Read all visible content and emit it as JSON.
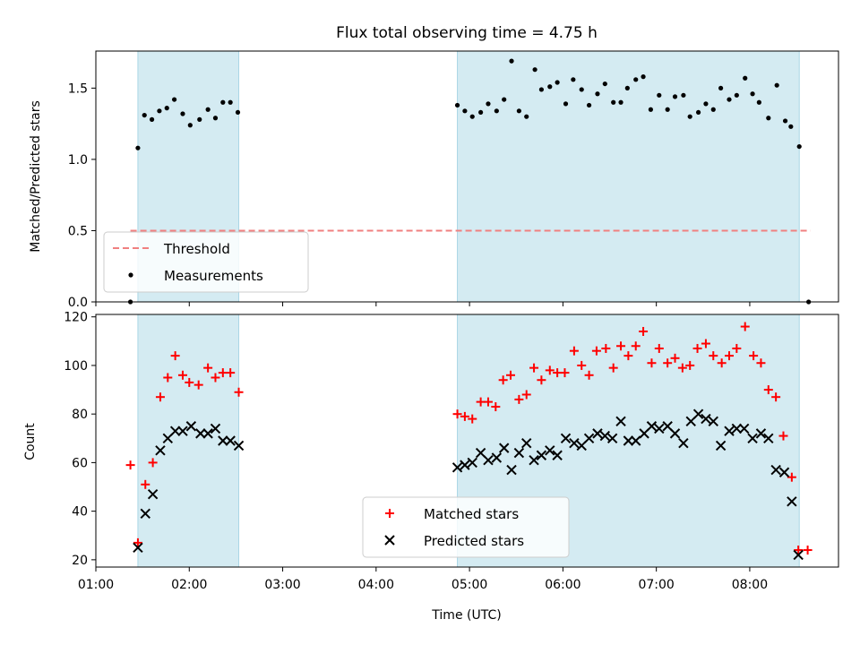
{
  "title": "Flux total observing time = 4.75 h",
  "colors": {
    "band": "#d4ebf2",
    "band_edge": "#a9d6e5",
    "threshold": "#f08080",
    "matched": "#ff0000",
    "predicted": "#000000"
  },
  "chart_data": [
    {
      "type": "scatter",
      "panel": "top",
      "xlabel": "",
      "ylabel": "Matched/Predicted stars",
      "xlim": [
        1.0,
        8.95
      ],
      "ylim": [
        0,
        1.76
      ],
      "yticks": [
        "0.0",
        "0.5",
        "1.0",
        "1.5"
      ],
      "grid": false,
      "legend_position": "lower-left",
      "threshold": {
        "name": "Threshold",
        "y": 0.5,
        "x_start": 1.37,
        "x_end": 8.65
      },
      "shaded_intervals": [
        [
          1.45,
          2.53
        ],
        [
          4.87,
          8.53
        ]
      ],
      "series": [
        {
          "name": "Measurements",
          "points": [
            [
              1.37,
              0.0
            ],
            [
              1.45,
              1.08
            ],
            [
              1.52,
              1.31
            ],
            [
              1.6,
              1.28
            ],
            [
              1.68,
              1.34
            ],
            [
              1.76,
              1.36
            ],
            [
              1.84,
              1.42
            ],
            [
              1.93,
              1.32
            ],
            [
              2.01,
              1.24
            ],
            [
              2.11,
              1.28
            ],
            [
              2.2,
              1.35
            ],
            [
              2.28,
              1.29
            ],
            [
              2.36,
              1.4
            ],
            [
              2.44,
              1.4
            ],
            [
              2.52,
              1.33
            ],
            [
              4.87,
              1.38
            ],
            [
              4.95,
              1.34
            ],
            [
              5.03,
              1.3
            ],
            [
              5.12,
              1.33
            ],
            [
              5.2,
              1.39
            ],
            [
              5.29,
              1.34
            ],
            [
              5.37,
              1.42
            ],
            [
              5.45,
              1.69
            ],
            [
              5.53,
              1.34
            ],
            [
              5.61,
              1.3
            ],
            [
              5.7,
              1.63
            ],
            [
              5.77,
              1.49
            ],
            [
              5.86,
              1.51
            ],
            [
              5.94,
              1.54
            ],
            [
              6.03,
              1.39
            ],
            [
              6.11,
              1.56
            ],
            [
              6.2,
              1.49
            ],
            [
              6.28,
              1.38
            ],
            [
              6.37,
              1.46
            ],
            [
              6.45,
              1.53
            ],
            [
              6.54,
              1.4
            ],
            [
              6.62,
              1.4
            ],
            [
              6.69,
              1.5
            ],
            [
              6.78,
              1.56
            ],
            [
              6.86,
              1.58
            ],
            [
              6.94,
              1.35
            ],
            [
              7.03,
              1.45
            ],
            [
              7.12,
              1.35
            ],
            [
              7.2,
              1.44
            ],
            [
              7.29,
              1.45
            ],
            [
              7.36,
              1.3
            ],
            [
              7.45,
              1.33
            ],
            [
              7.53,
              1.39
            ],
            [
              7.61,
              1.35
            ],
            [
              7.69,
              1.5
            ],
            [
              7.78,
              1.42
            ],
            [
              7.86,
              1.45
            ],
            [
              7.95,
              1.57
            ],
            [
              8.03,
              1.46
            ],
            [
              8.1,
              1.4
            ],
            [
              8.2,
              1.29
            ],
            [
              8.29,
              1.52
            ],
            [
              8.38,
              1.27
            ],
            [
              8.44,
              1.23
            ],
            [
              8.53,
              1.09
            ],
            [
              8.63,
              0.0
            ]
          ]
        }
      ]
    },
    {
      "type": "scatter",
      "panel": "bottom",
      "xlabel": "Time (UTC)",
      "ylabel": "Count",
      "xlim": [
        1.0,
        8.95
      ],
      "ylim": [
        17,
        121
      ],
      "xticks": [
        "01:00",
        "02:00",
        "03:00",
        "04:00",
        "05:00",
        "06:00",
        "07:00",
        "08:00"
      ],
      "yticks": [
        "20",
        "40",
        "60",
        "80",
        "100",
        "120"
      ],
      "grid": false,
      "legend_position": "lower-center",
      "shaded_intervals": [
        [
          1.45,
          2.53
        ],
        [
          4.87,
          8.53
        ]
      ],
      "series": [
        {
          "name": "Matched stars",
          "marker": "plus",
          "points": [
            [
              1.37,
              59
            ],
            [
              1.45,
              27
            ],
            [
              1.53,
              51
            ],
            [
              1.61,
              60
            ],
            [
              1.69,
              87
            ],
            [
              1.77,
              95
            ],
            [
              1.85,
              104
            ],
            [
              1.93,
              96
            ],
            [
              2.0,
              93
            ],
            [
              2.1,
              92
            ],
            [
              2.2,
              99
            ],
            [
              2.28,
              95
            ],
            [
              2.36,
              97
            ],
            [
              2.44,
              97
            ],
            [
              2.53,
              89
            ],
            [
              4.87,
              80
            ],
            [
              4.95,
              79
            ],
            [
              5.03,
              78
            ],
            [
              5.12,
              85
            ],
            [
              5.2,
              85
            ],
            [
              5.28,
              83
            ],
            [
              5.36,
              94
            ],
            [
              5.44,
              96
            ],
            [
              5.53,
              86
            ],
            [
              5.61,
              88
            ],
            [
              5.69,
              99
            ],
            [
              5.77,
              94
            ],
            [
              5.86,
              98
            ],
            [
              5.94,
              97
            ],
            [
              6.02,
              97
            ],
            [
              6.12,
              106
            ],
            [
              6.2,
              100
            ],
            [
              6.28,
              96
            ],
            [
              6.36,
              106
            ],
            [
              6.46,
              107
            ],
            [
              6.54,
              99
            ],
            [
              6.62,
              108
            ],
            [
              6.7,
              104
            ],
            [
              6.78,
              108
            ],
            [
              6.86,
              114
            ],
            [
              6.95,
              101
            ],
            [
              7.03,
              107
            ],
            [
              7.12,
              101
            ],
            [
              7.2,
              103
            ],
            [
              7.28,
              99
            ],
            [
              7.36,
              100
            ],
            [
              7.44,
              107
            ],
            [
              7.53,
              109
            ],
            [
              7.61,
              104
            ],
            [
              7.7,
              101
            ],
            [
              7.78,
              104
            ],
            [
              7.86,
              107
            ],
            [
              7.95,
              116
            ],
            [
              8.04,
              104
            ],
            [
              8.12,
              101
            ],
            [
              8.2,
              90
            ],
            [
              8.28,
              87
            ],
            [
              8.36,
              71
            ],
            [
              8.45,
              54
            ],
            [
              8.52,
              24
            ],
            [
              8.62,
              24
            ]
          ]
        },
        {
          "name": "Predicted stars",
          "marker": "x",
          "points": [
            [
              1.45,
              25
            ],
            [
              1.53,
              39
            ],
            [
              1.61,
              47
            ],
            [
              1.69,
              65
            ],
            [
              1.77,
              70
            ],
            [
              1.85,
              73
            ],
            [
              1.93,
              73
            ],
            [
              2.02,
              75
            ],
            [
              2.12,
              72
            ],
            [
              2.2,
              72
            ],
            [
              2.28,
              74
            ],
            [
              2.36,
              69
            ],
            [
              2.44,
              69
            ],
            [
              2.53,
              67
            ],
            [
              4.87,
              58
            ],
            [
              4.95,
              59
            ],
            [
              5.03,
              60
            ],
            [
              5.12,
              64
            ],
            [
              5.2,
              61
            ],
            [
              5.29,
              62
            ],
            [
              5.37,
              66
            ],
            [
              5.45,
              57
            ],
            [
              5.53,
              64
            ],
            [
              5.61,
              68
            ],
            [
              5.69,
              61
            ],
            [
              5.77,
              63
            ],
            [
              5.86,
              65
            ],
            [
              5.94,
              63
            ],
            [
              6.03,
              70
            ],
            [
              6.12,
              68
            ],
            [
              6.2,
              67
            ],
            [
              6.28,
              70
            ],
            [
              6.37,
              72
            ],
            [
              6.45,
              71
            ],
            [
              6.53,
              70
            ],
            [
              6.62,
              77
            ],
            [
              6.7,
              69
            ],
            [
              6.78,
              69
            ],
            [
              6.87,
              72
            ],
            [
              6.95,
              75
            ],
            [
              7.03,
              74
            ],
            [
              7.12,
              75
            ],
            [
              7.2,
              72
            ],
            [
              7.29,
              68
            ],
            [
              7.37,
              77
            ],
            [
              7.45,
              80
            ],
            [
              7.53,
              78
            ],
            [
              7.61,
              77
            ],
            [
              7.69,
              67
            ],
            [
              7.78,
              73
            ],
            [
              7.86,
              74
            ],
            [
              7.94,
              74
            ],
            [
              8.03,
              70
            ],
            [
              8.12,
              72
            ],
            [
              8.2,
              70
            ],
            [
              8.28,
              57
            ],
            [
              8.37,
              56
            ],
            [
              8.45,
              44
            ],
            [
              8.52,
              22
            ]
          ]
        }
      ]
    }
  ]
}
